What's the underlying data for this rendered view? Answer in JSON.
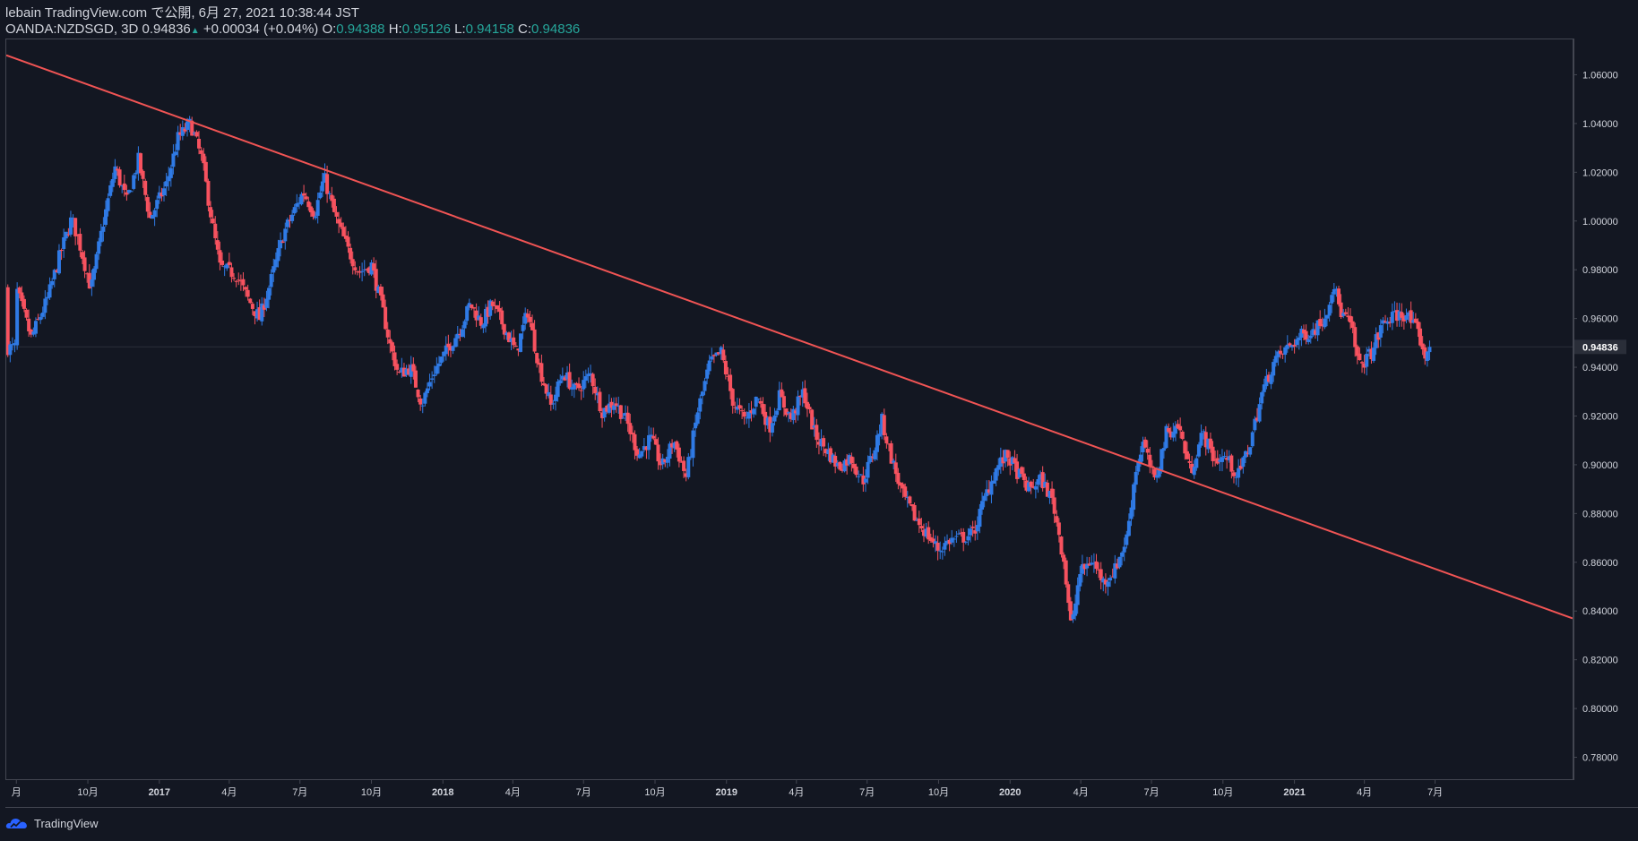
{
  "header": {
    "line1": "lebain TradingView.com で公開, 6月 27, 2021 10:38:44 JST",
    "symbol": "OANDA:NZDSGD, 3D",
    "last": "0.94836",
    "change": "+0.00034 (+0.04%)",
    "o_label": "O:",
    "o_value": "0.94388",
    "h_label": "H:",
    "h_value": "0.95126",
    "l_label": "L:",
    "l_value": "0.94158",
    "c_label": "C:",
    "c_value": "0.94836"
  },
  "footer": {
    "brand": "TradingView"
  },
  "colors": {
    "background": "#131722",
    "up": "#2f7ae5",
    "down": "#f7525f",
    "trendline": "#f05454",
    "axis_text": "#d1d4dc",
    "price_label_bg": "#2a2e39"
  },
  "chart_data": {
    "type": "candlestick",
    "symbol": "OANDA:NZDSGD",
    "timeframe": "3D",
    "y_ticks": [
      1.06,
      1.04,
      1.02,
      1.0,
      0.98,
      0.96,
      0.94,
      0.92,
      0.9,
      0.88,
      0.86,
      0.84,
      0.82,
      0.8,
      0.78
    ],
    "y_tick_labels": [
      "1.06000",
      "1.04000",
      "1.02000",
      "1.00000",
      "0.98000",
      "0.96000",
      "0.94000",
      "0.92000",
      "0.90000",
      "0.88000",
      "0.86000",
      "0.84000",
      "0.82000",
      "0.80000",
      "0.78000"
    ],
    "ylim": [
      0.771,
      1.0745
    ],
    "x_range": [
      "2016-06-18",
      "2021-12-25"
    ],
    "x_ticks": [
      {
        "date": "2016-07-01",
        "label": "月"
      },
      {
        "date": "2016-10-01",
        "label": "10月"
      },
      {
        "date": "2017-01-01",
        "label": "2017"
      },
      {
        "date": "2017-04-01",
        "label": "4月"
      },
      {
        "date": "2017-07-01",
        "label": "7月"
      },
      {
        "date": "2017-10-01",
        "label": "10月"
      },
      {
        "date": "2018-01-01",
        "label": "2018"
      },
      {
        "date": "2018-04-01",
        "label": "4月"
      },
      {
        "date": "2018-07-01",
        "label": "7月"
      },
      {
        "date": "2018-10-01",
        "label": "10月"
      },
      {
        "date": "2019-01-01",
        "label": "2019"
      },
      {
        "date": "2019-04-01",
        "label": "4月"
      },
      {
        "date": "2019-07-01",
        "label": "7月"
      },
      {
        "date": "2019-10-01",
        "label": "10月"
      },
      {
        "date": "2020-01-01",
        "label": "2020"
      },
      {
        "date": "2020-04-01",
        "label": "4月"
      },
      {
        "date": "2020-07-01",
        "label": "7月"
      },
      {
        "date": "2020-10-01",
        "label": "10月"
      },
      {
        "date": "2021-01-01",
        "label": "2021"
      },
      {
        "date": "2021-04-01",
        "label": "4月"
      },
      {
        "date": "2021-07-01",
        "label": "7月"
      }
    ],
    "last_price": 0.94836,
    "last_price_label": "0.94836",
    "trendline": {
      "start": {
        "date": "2016-06-18",
        "price": 1.068
      },
      "end": {
        "date": "2021-12-25",
        "price": 0.837
      }
    },
    "close_path": [
      [
        "2016-07-01",
        0.972
      ],
      [
        "2016-07-20",
        0.952
      ],
      [
        "2016-08-10",
        0.968
      ],
      [
        "2016-08-25",
        0.985
      ],
      [
        "2016-09-10",
        1.001
      ],
      [
        "2016-09-20",
        0.991
      ],
      [
        "2016-10-05",
        0.972
      ],
      [
        "2016-10-20",
        0.998
      ],
      [
        "2016-11-05",
        1.022
      ],
      [
        "2016-11-20",
        1.008
      ],
      [
        "2016-12-05",
        1.025
      ],
      [
        "2016-12-20",
        1.001
      ],
      [
        "2017-01-10",
        1.015
      ],
      [
        "2017-01-25",
        1.034
      ],
      [
        "2017-02-10",
        1.04
      ],
      [
        "2017-02-25",
        1.025
      ],
      [
        "2017-03-10",
        0.999
      ],
      [
        "2017-03-20",
        0.981
      ],
      [
        "2017-04-10",
        0.978
      ],
      [
        "2017-04-25",
        0.968
      ],
      [
        "2017-05-10",
        0.96
      ],
      [
        "2017-05-25",
        0.976
      ],
      [
        "2017-06-10",
        0.995
      ],
      [
        "2017-07-05",
        1.012
      ],
      [
        "2017-07-20",
        1.003
      ],
      [
        "2017-08-01",
        1.018
      ],
      [
        "2017-08-15",
        1.002
      ],
      [
        "2017-09-01",
        0.988
      ],
      [
        "2017-09-15",
        0.979
      ],
      [
        "2017-10-01",
        0.982
      ],
      [
        "2017-10-15",
        0.964
      ],
      [
        "2017-10-25",
        0.949
      ],
      [
        "2017-11-05",
        0.937
      ],
      [
        "2017-11-20",
        0.94
      ],
      [
        "2017-12-05",
        0.925
      ],
      [
        "2017-12-20",
        0.938
      ],
      [
        "2018-01-10",
        0.949
      ],
      [
        "2018-01-25",
        0.957
      ],
      [
        "2018-02-05",
        0.966
      ],
      [
        "2018-02-20",
        0.958
      ],
      [
        "2018-03-05",
        0.966
      ],
      [
        "2018-03-20",
        0.957
      ],
      [
        "2018-04-05",
        0.946
      ],
      [
        "2018-04-20",
        0.963
      ],
      [
        "2018-05-05",
        0.94
      ],
      [
        "2018-05-20",
        0.924
      ],
      [
        "2018-06-05",
        0.938
      ],
      [
        "2018-06-20",
        0.93
      ],
      [
        "2018-07-10",
        0.937
      ],
      [
        "2018-07-25",
        0.922
      ],
      [
        "2018-08-10",
        0.926
      ],
      [
        "2018-08-25",
        0.918
      ],
      [
        "2018-09-10",
        0.904
      ],
      [
        "2018-09-25",
        0.911
      ],
      [
        "2018-10-10",
        0.899
      ],
      [
        "2018-10-25",
        0.91
      ],
      [
        "2018-11-10",
        0.895
      ],
      [
        "2018-11-25",
        0.922
      ],
      [
        "2018-12-10",
        0.941
      ],
      [
        "2018-12-25",
        0.946
      ],
      [
        "2019-01-10",
        0.925
      ],
      [
        "2019-01-25",
        0.918
      ],
      [
        "2019-02-10",
        0.928
      ],
      [
        "2019-02-25",
        0.915
      ],
      [
        "2019-03-10",
        0.928
      ],
      [
        "2019-03-25",
        0.919
      ],
      [
        "2019-04-10",
        0.93
      ],
      [
        "2019-04-25",
        0.912
      ],
      [
        "2019-05-10",
        0.906
      ],
      [
        "2019-05-25",
        0.899
      ],
      [
        "2019-06-10",
        0.903
      ],
      [
        "2019-06-25",
        0.893
      ],
      [
        "2019-07-10",
        0.906
      ],
      [
        "2019-07-20",
        0.918
      ],
      [
        "2019-08-01",
        0.903
      ],
      [
        "2019-08-15",
        0.888
      ],
      [
        "2019-09-01",
        0.878
      ],
      [
        "2019-09-15",
        0.872
      ],
      [
        "2019-10-01",
        0.865
      ],
      [
        "2019-10-15",
        0.869
      ],
      [
        "2019-11-01",
        0.87
      ],
      [
        "2019-11-15",
        0.872
      ],
      [
        "2019-12-01",
        0.888
      ],
      [
        "2019-12-15",
        0.899
      ],
      [
        "2019-12-28",
        0.904
      ],
      [
        "2020-01-10",
        0.897
      ],
      [
        "2020-01-25",
        0.89
      ],
      [
        "2020-02-10",
        0.894
      ],
      [
        "2020-02-25",
        0.885
      ],
      [
        "2020-03-10",
        0.861
      ],
      [
        "2020-03-20",
        0.832
      ],
      [
        "2020-03-30",
        0.855
      ],
      [
        "2020-04-15",
        0.861
      ],
      [
        "2020-04-30",
        0.852
      ],
      [
        "2020-05-15",
        0.857
      ],
      [
        "2020-05-30",
        0.87
      ],
      [
        "2020-06-10",
        0.897
      ],
      [
        "2020-06-20",
        0.909
      ],
      [
        "2020-07-05",
        0.893
      ],
      [
        "2020-07-20",
        0.913
      ],
      [
        "2020-08-05",
        0.916
      ],
      [
        "2020-08-20",
        0.897
      ],
      [
        "2020-09-05",
        0.913
      ],
      [
        "2020-09-20",
        0.902
      ],
      [
        "2020-10-05",
        0.903
      ],
      [
        "2020-10-20",
        0.895
      ],
      [
        "2020-11-05",
        0.909
      ],
      [
        "2020-11-20",
        0.929
      ],
      [
        "2020-12-05",
        0.942
      ],
      [
        "2020-12-20",
        0.947
      ],
      [
        "2021-01-10",
        0.953
      ],
      [
        "2021-01-25",
        0.955
      ],
      [
        "2021-02-10",
        0.961
      ],
      [
        "2021-02-20",
        0.975
      ],
      [
        "2021-03-01",
        0.963
      ],
      [
        "2021-03-15",
        0.957
      ],
      [
        "2021-03-25",
        0.94
      ],
      [
        "2021-04-10",
        0.946
      ],
      [
        "2021-04-25",
        0.958
      ],
      [
        "2021-05-10",
        0.961
      ],
      [
        "2021-05-25",
        0.962
      ],
      [
        "2021-06-10",
        0.953
      ],
      [
        "2021-06-20",
        0.943
      ],
      [
        "2021-06-26",
        0.948
      ]
    ]
  }
}
